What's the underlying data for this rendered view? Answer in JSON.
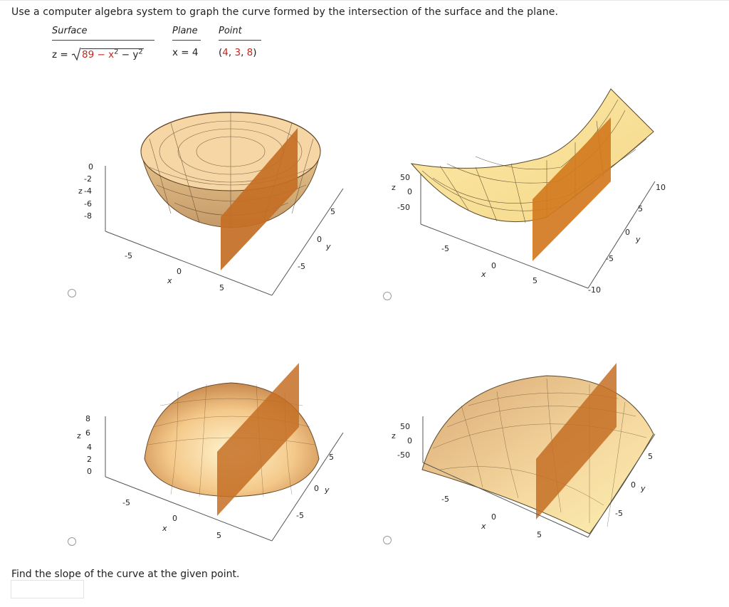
{
  "question": "Use a computer algebra system to graph the curve formed by the intersection of the surface and the plane.",
  "table": {
    "headers": {
      "surface": "Surface",
      "plane": "Plane",
      "point": "Point"
    },
    "surface_prefix": "z =",
    "surface_radicand": "89 − x",
    "surface_rest": " − y",
    "exp": "2",
    "plane": "x = 4",
    "point": "(4, 3, 8)"
  },
  "plots": [
    {
      "option": "A",
      "z_ticks": [
        "0",
        "-2",
        "-4",
        "-6",
        "-8"
      ],
      "x_ticks": [
        "-5",
        "0",
        "5"
      ],
      "y_ticks": [
        "-5",
        "0",
        "5"
      ],
      "z_label": "z",
      "x_label": "x",
      "y_label": "y"
    },
    {
      "option": "B",
      "z_ticks": [
        "50",
        "0",
        "-50"
      ],
      "x_ticks": [
        "-5",
        "0",
        "5"
      ],
      "y_ticks": [
        "-10",
        "-5",
        "0",
        "5",
        "10"
      ],
      "z_label": "z",
      "x_label": "x",
      "y_label": "y"
    },
    {
      "option": "C",
      "z_ticks": [
        "8",
        "6",
        "4",
        "2",
        "0"
      ],
      "x_ticks": [
        "-5",
        "0",
        "5"
      ],
      "y_ticks": [
        "-5",
        "0",
        "5"
      ],
      "z_label": "z",
      "x_label": "x",
      "y_label": "y"
    },
    {
      "option": "D",
      "z_ticks": [
        "50",
        "0",
        "-50"
      ],
      "x_ticks": [
        "-5",
        "0",
        "5"
      ],
      "y_ticks": [
        "-5",
        "0",
        "5"
      ],
      "z_label": "z",
      "x_label": "x",
      "y_label": "y"
    }
  ],
  "prompt": "Find the slope of the curve at the given point.",
  "answer": {
    "value": ""
  }
}
